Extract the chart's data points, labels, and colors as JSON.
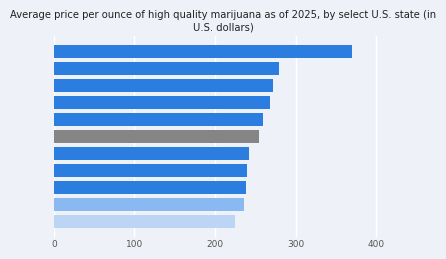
{
  "title": "Average price per ounce of high quality marijuana as of 2025, by select U.S. state (in\nU.S. dollars)",
  "values": [
    370,
    280,
    272,
    268,
    260,
    255,
    242,
    240,
    238,
    236,
    225
  ],
  "colors": [
    "#2b7de0",
    "#2b7de0",
    "#2b7de0",
    "#2b7de0",
    "#2b7de0",
    "#858585",
    "#2b7de0",
    "#2b7de0",
    "#2b7de0",
    "#8ab8f0",
    "#bdd5f5"
  ],
  "bg_color": "#eef2f8",
  "title_fontsize": 7.2,
  "xlim": [
    0,
    420
  ],
  "xticks": [
    0,
    100,
    200,
    300,
    400
  ]
}
